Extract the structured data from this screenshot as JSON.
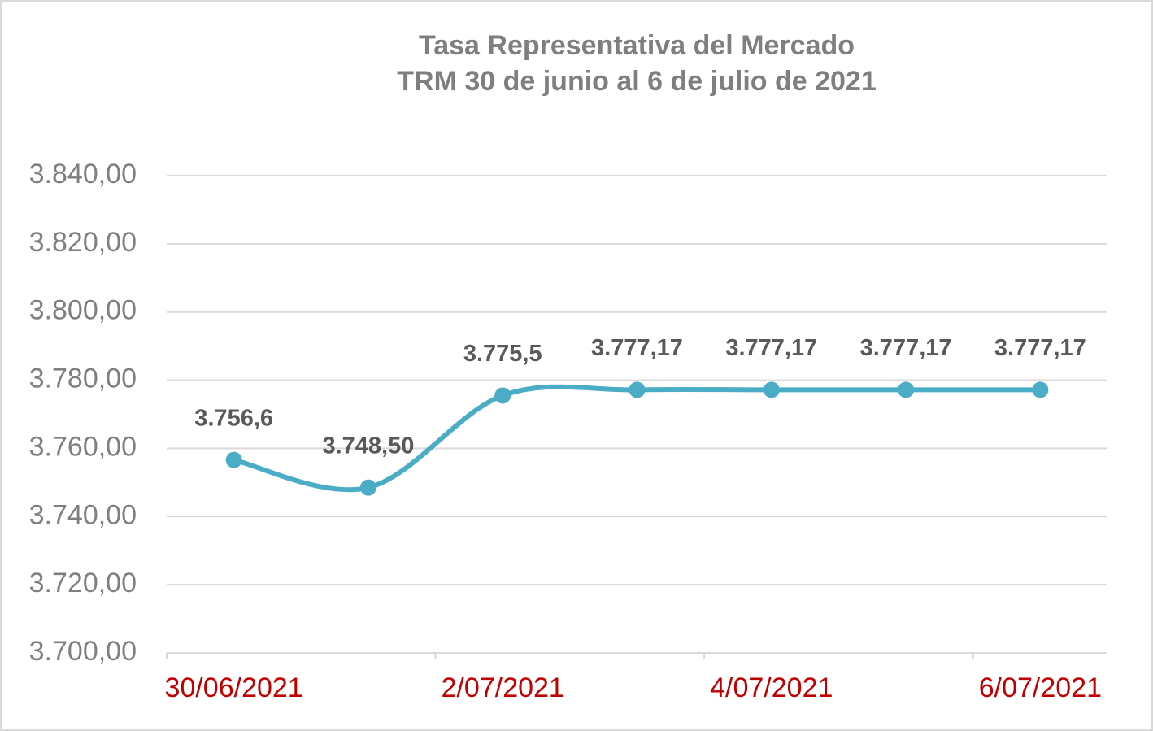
{
  "chart_data": {
    "type": "line",
    "title": "Tasa Representativa del Mercado",
    "subtitle": "TRM 30 de junio al 6 de julio de 2021",
    "categories": [
      "30/06/2021",
      null,
      "2/07/2021",
      null,
      "4/07/2021",
      null,
      "6/07/2021"
    ],
    "series": [
      {
        "name": "TRM",
        "color": "#4bacc6",
        "values": [
          3756.6,
          3748.5,
          3775.5,
          3777.17,
          3777.17,
          3777.17,
          3777.17
        ],
        "value_labels": [
          "3.756,6",
          "3.748,50",
          "3.775,5",
          "3.777,17",
          "3.777,17",
          "3.777,17",
          "3.777,17"
        ]
      }
    ],
    "ylim": [
      3700,
      3840
    ],
    "yticks": [
      {
        "value": 3700,
        "label": "3.700,00"
      },
      {
        "value": 3720,
        "label": "3.720,00"
      },
      {
        "value": 3740,
        "label": "3.740,00"
      },
      {
        "value": 3760,
        "label": "3.760,00"
      },
      {
        "value": 3780,
        "label": "3.780,00"
      },
      {
        "value": 3800,
        "label": "3.800,00"
      },
      {
        "value": 3820,
        "label": "3.820,00"
      },
      {
        "value": 3840,
        "label": "3.840,00"
      }
    ],
    "grid": true
  }
}
